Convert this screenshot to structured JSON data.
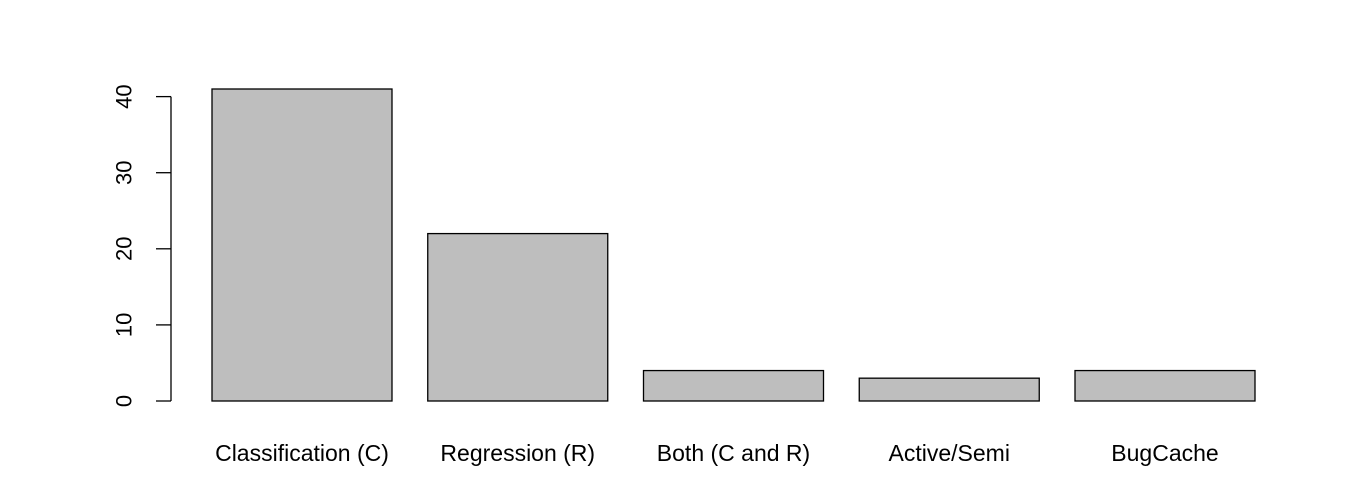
{
  "chart_data": {
    "type": "bar",
    "title": "",
    "xlabel": "",
    "ylabel": "",
    "categories": [
      "Classification (C)",
      "Regression (R)",
      "Both (C and R)",
      "Active/Semi",
      "BugCache"
    ],
    "values": [
      41,
      22,
      4,
      3,
      4
    ],
    "ylim": [
      0,
      41
    ],
    "yticks": [
      0,
      10,
      20,
      30,
      40
    ],
    "grid": false,
    "colors": {
      "bar_fill": "#bebebe",
      "bar_stroke": "#000000"
    }
  }
}
